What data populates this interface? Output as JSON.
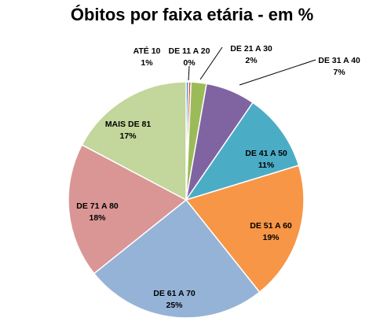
{
  "chart_data": {
    "type": "pie",
    "title": "Óbitos por faixa etária - em %",
    "slices": [
      {
        "name": "ATÉ 10",
        "value": 1,
        "value_label": "1%",
        "color": "#4F81BD"
      },
      {
        "name": "DE 11 A 20",
        "value": 0,
        "value_label": "0%",
        "color": "#C0504D"
      },
      {
        "name": "DE 21 A 30",
        "value": 2,
        "value_label": "2%",
        "color": "#9BBB59"
      },
      {
        "name": "DE 31 A 40",
        "value": 7,
        "value_label": "7%",
        "color": "#8064A2"
      },
      {
        "name": "DE 41 A 50",
        "value": 11,
        "value_label": "11%",
        "color": "#4BACC6"
      },
      {
        "name": "DE 51 A 60",
        "value": 19,
        "value_label": "19%",
        "color": "#F79646"
      },
      {
        "name": "DE 61 A 70",
        "value": 25,
        "value_label": "25%",
        "color": "#95B3D7"
      },
      {
        "name": "DE 71 A 80",
        "value": 18,
        "value_label": "18%",
        "color": "#D99694"
      },
      {
        "name": "MAIS DE 81",
        "value": 17,
        "value_label": "17%",
        "color": "#C3D69B"
      }
    ],
    "legend": "none"
  }
}
